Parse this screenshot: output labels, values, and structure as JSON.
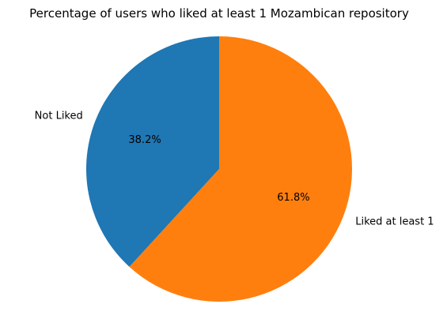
{
  "chart_data": {
    "type": "pie",
    "title": "Percentage of users who liked at least 1 Mozambican repository",
    "slices": [
      {
        "label": "Not Liked",
        "value": 38.2,
        "pct_label": "38.2%",
        "color": "#1f77b4"
      },
      {
        "label": "Liked at least 1",
        "value": 61.8,
        "pct_label": "61.8%",
        "color": "#ff7f0e"
      }
    ],
    "start_angle_deg": 90,
    "direction": "counterclockwise",
    "legend": "none"
  }
}
